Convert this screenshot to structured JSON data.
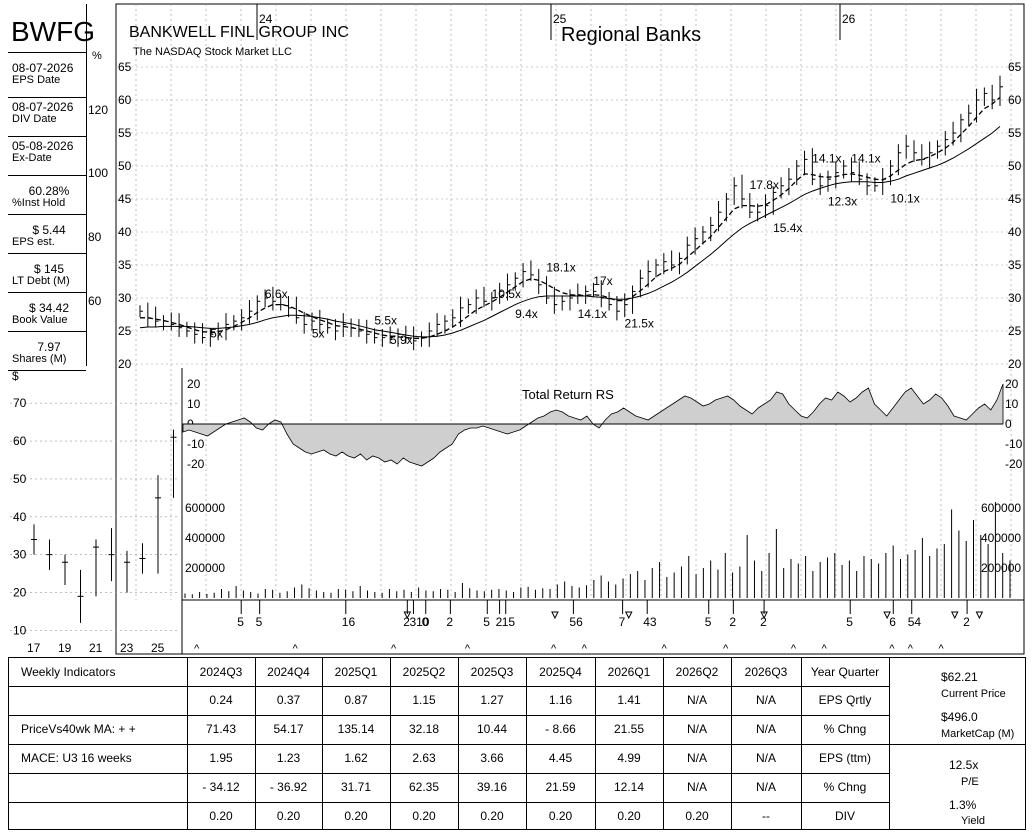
{
  "header": {
    "ticker": "BWFG",
    "company": "BANKWELL FINL GROUP INC",
    "exchange": "The NASDAQ Stock Market LLC",
    "industry": "Regional Banks"
  },
  "side_panel": [
    {
      "value": "08-07-2026",
      "label": "EPS Date"
    },
    {
      "value": "08-07-2026",
      "label": "DIV Date"
    },
    {
      "value": "05-08-2026",
      "label": "Ex-Date"
    },
    {
      "value": "60.28%",
      "label": "%Inst Hold"
    },
    {
      "value": "$ 5.44",
      "label": "EPS est."
    },
    {
      "value": "$ 145",
      "label": "LT Debt (M)"
    },
    {
      "value": "$ 34.42",
      "label": "Book Value"
    },
    {
      "value": "7.97",
      "label": "Shares (M)"
    }
  ],
  "pct_axis": {
    "symbol": "%",
    "ticks": [
      "120",
      "100",
      "80",
      "60"
    ]
  },
  "chart_data": [
    {
      "type": "line",
      "name": "weekly-price",
      "x_year_labels": [
        "24",
        "25",
        "26"
      ],
      "y_ticks": [
        20,
        25,
        30,
        35,
        40,
        45,
        50,
        55,
        60,
        65
      ],
      "ylim": [
        20,
        66
      ],
      "price_close": [
        28,
        27,
        26.5,
        26.5,
        26,
        25.5,
        25,
        24.5,
        24,
        24.5,
        25,
        26,
        26.5,
        27,
        28,
        29.5,
        30,
        29.5,
        29,
        28.5,
        27,
        26,
        26.5,
        26,
        25.5,
        25,
        26,
        25.5,
        25,
        24.5,
        24,
        24,
        24,
        24.5,
        24,
        23.5,
        24,
        25,
        26,
        26.5,
        27,
        28.5,
        29,
        30,
        29.5,
        30,
        31,
        32,
        33,
        34,
        33.5,
        32,
        30,
        29,
        29.5,
        30,
        30.5,
        31,
        31,
        30,
        29,
        28,
        29,
        31,
        33,
        34,
        35,
        35.5,
        35,
        36,
        38,
        39,
        40,
        41,
        43,
        45,
        47,
        45,
        43,
        43,
        44,
        46,
        47,
        48,
        50,
        51,
        48,
        47,
        48,
        49,
        50,
        49,
        48,
        47,
        47,
        48,
        50,
        52,
        53,
        52,
        51,
        52,
        53,
        54,
        55,
        57,
        58,
        60,
        61,
        60,
        62
      ],
      "sma10": [
        27,
        27,
        26.8,
        26.6,
        26.3,
        26,
        25.6,
        25.2,
        24.9,
        24.8,
        24.9,
        25.2,
        25.7,
        26.3,
        27,
        27.8,
        28.5,
        29,
        29,
        28.8,
        28.3,
        27.7,
        27.2,
        26.7,
        26.3,
        25.8,
        25.7,
        25.5,
        25.3,
        25,
        24.7,
        24.4,
        24.2,
        24.1,
        24,
        23.9,
        23.9,
        24.1,
        24.5,
        25,
        25.6,
        26.4,
        27.3,
        28.2,
        28.8,
        29.4,
        30.1,
        30.9,
        31.7,
        32.5,
        32.9,
        32.7,
        32.1,
        31.4,
        30.8,
        30.5,
        30.4,
        30.4,
        30.5,
        30.4,
        30,
        29.6,
        29.6,
        30.2,
        31.1,
        32.1,
        33.2,
        34,
        34.5,
        35.1,
        36.2,
        37.2,
        38.3,
        39.3,
        40.7,
        42.1,
        43.5,
        44,
        44,
        43.9,
        44.1,
        44.8,
        45.6,
        46.6,
        47.8,
        48.8,
        48.7,
        48.4,
        48.3,
        48.4,
        48.7,
        48.8,
        48.6,
        48.3,
        48,
        47.9,
        48.5,
        49.4,
        50.3,
        50.8,
        51,
        51.4,
        52,
        52.7,
        53.6,
        54.8,
        56,
        57.4,
        58.7,
        59.4,
        60.4
      ],
      "sma40": [
        25.5,
        25.6,
        25.6,
        25.7,
        25.7,
        25.7,
        25.7,
        25.6,
        25.5,
        25.4,
        25.4,
        25.5,
        25.6,
        25.8,
        26,
        26.3,
        26.7,
        27,
        27.2,
        27.4,
        27.4,
        27.3,
        27.2,
        27,
        26.8,
        26.5,
        26.3,
        26.1,
        25.8,
        25.5,
        25.2,
        25,
        24.8,
        24.6,
        24.4,
        24.2,
        24.1,
        24.1,
        24.2,
        24.4,
        24.7,
        25.1,
        25.6,
        26.1,
        26.6,
        27.2,
        27.8,
        28.4,
        29,
        29.5,
        29.9,
        30.2,
        30.3,
        30.3,
        30.3,
        30.3,
        30.3,
        30.3,
        30.2,
        30.1,
        29.9,
        29.8,
        29.8,
        30,
        30.3,
        30.7,
        31.2,
        31.8,
        32.4,
        33.1,
        33.9,
        34.8,
        35.7,
        36.6,
        37.6,
        38.7,
        39.7,
        40.6,
        41.3,
        41.9,
        42.5,
        43.1,
        43.7,
        44.3,
        45,
        45.7,
        46.2,
        46.6,
        47,
        47.3,
        47.5,
        47.6,
        47.6,
        47.6,
        47.5,
        47.5,
        47.7,
        48,
        48.5,
        48.9,
        49.3,
        49.7,
        50.1,
        50.6,
        51.2,
        51.9,
        52.6,
        53.4,
        54.2,
        55,
        56
      ],
      "pe_labels": [
        {
          "text": "5x",
          "i": 10,
          "y": 24
        },
        {
          "text": "6.6x",
          "i": 17,
          "y": 30
        },
        {
          "text": "5x",
          "i": 23,
          "y": 24
        },
        {
          "text": "5.5x",
          "i": 31,
          "y": 26
        },
        {
          "text": "5.9x",
          "i": 33,
          "y": 23
        },
        {
          "text": "10.5x",
          "i": 46,
          "y": 30
        },
        {
          "text": "9.4x",
          "i": 49,
          "y": 27
        },
        {
          "text": "18.1x",
          "i": 53,
          "y": 34
        },
        {
          "text": "14.1x",
          "i": 57,
          "y": 27
        },
        {
          "text": "17x",
          "i": 59,
          "y": 32
        },
        {
          "text": "21.5x",
          "i": 63,
          "y": 25.5
        },
        {
          "text": "17.8x",
          "i": 79,
          "y": 46.5
        },
        {
          "text": "15.4x",
          "i": 82,
          "y": 40
        },
        {
          "text": "14.1x",
          "i": 87,
          "y": 50.5
        },
        {
          "text": "12.3x",
          "i": 89,
          "y": 44
        },
        {
          "text": "14.1x",
          "i": 92,
          "y": 50.5
        },
        {
          "text": "10.1x",
          "i": 97,
          "y": 44.5
        }
      ]
    },
    {
      "type": "area",
      "name": "total-return-rs",
      "title": "Total Return RS",
      "y_ticks": [
        20,
        10,
        0,
        -10,
        -20
      ],
      "ylim": [
        -22,
        22
      ],
      "values": [
        -4,
        -3,
        -4,
        -5,
        -6,
        -4,
        -2,
        0,
        1,
        2,
        3,
        1,
        -2,
        -3,
        0,
        2,
        1,
        -5,
        -10,
        -12,
        -14,
        -15,
        -14,
        -13,
        -15,
        -16,
        -14,
        -16,
        -17,
        -15,
        -18,
        -16,
        -17,
        -19,
        -18,
        -20,
        -17,
        -19,
        -20,
        -21,
        -19,
        -17,
        -14,
        -12,
        -10,
        -5,
        -3,
        -2,
        -2,
        -1,
        -2,
        -3,
        -4,
        -5,
        -4,
        -3,
        -1,
        1,
        3,
        4,
        6,
        7,
        6,
        4,
        3,
        2,
        4,
        0,
        -2,
        2,
        5,
        6,
        8,
        6,
        4,
        3,
        2,
        4,
        6,
        8,
        10,
        12,
        14,
        13,
        11,
        9,
        10,
        12,
        13,
        14,
        12,
        9,
        7,
        5,
        8,
        10,
        12,
        16,
        15,
        10,
        7,
        4,
        3,
        6,
        10,
        13,
        12,
        16,
        14,
        11,
        13,
        16,
        18,
        10,
        7,
        4,
        8,
        12,
        16,
        18,
        14,
        10,
        12,
        15,
        13,
        9,
        4,
        3,
        2,
        5,
        8,
        10,
        7,
        12,
        20
      ]
    },
    {
      "type": "bar",
      "name": "volume",
      "y_ticks": [
        600000,
        400000,
        200000
      ],
      "ylim": [
        0,
        680000
      ],
      "values": [
        30000,
        25000,
        40000,
        28000,
        35000,
        60000,
        45000,
        80000,
        50000,
        40000,
        30000,
        60000,
        55000,
        35000,
        45000,
        70000,
        90000,
        65000,
        50000,
        40000,
        35000,
        60000,
        55000,
        45000,
        80000,
        50000,
        40000,
        35000,
        60000,
        45000,
        55000,
        40000,
        70000,
        50000,
        45000,
        60000,
        55000,
        40000,
        100000,
        65000,
        50000,
        45000,
        55000,
        60000,
        50000,
        40000,
        70000,
        75000,
        55000,
        65000,
        60000,
        90000,
        110000,
        80000,
        70000,
        85000,
        120000,
        150000,
        110000,
        90000,
        130000,
        160000,
        180000,
        120000,
        200000,
        240000,
        140000,
        170000,
        210000,
        280000,
        160000,
        200000,
        250000,
        190000,
        300000,
        170000,
        210000,
        420000,
        250000,
        180000,
        300000,
        460000,
        200000,
        260000,
        230000,
        280000,
        180000,
        240000,
        270000,
        300000,
        220000,
        250000,
        180000,
        280000,
        260000,
        230000,
        300000,
        350000,
        260000,
        290000,
        320000,
        400000,
        280000,
        330000,
        360000,
        590000,
        450000,
        380000,
        520000,
        420000,
        360000,
        640000,
        300000,
        250000
      ]
    },
    {
      "type": "bar",
      "name": "annual-price-range",
      "y_axis_symbol": "$",
      "categories": [
        "17",
        "18",
        "19",
        "20",
        "21",
        "22",
        "23",
        "24",
        "25",
        "26"
      ],
      "x_ticks": [
        "17",
        "19",
        "21",
        "23",
        "25"
      ],
      "y_ticks": [
        10,
        20,
        30,
        40,
        50,
        60,
        70
      ],
      "ylim": [
        8,
        74
      ],
      "high": [
        38,
        34,
        30,
        26,
        34,
        37,
        31,
        33,
        51,
        63
      ],
      "low": [
        30,
        26,
        22,
        12,
        19,
        23,
        20,
        25,
        25,
        45
      ],
      "close": [
        34,
        30,
        28,
        19,
        32,
        30,
        28,
        29,
        45,
        61
      ]
    }
  ],
  "insider_row": {
    "labels": [
      {
        "text": "5",
        "i": 8
      },
      {
        "text": "5",
        "i": 11
      },
      {
        "text": "16",
        "i": 25
      },
      {
        "text": "2",
        "i": 35
      },
      {
        "text": "310",
        "i": 36
      },
      {
        "text": "0",
        "i": 38
      },
      {
        "text": "2",
        "i": 42
      },
      {
        "text": "5",
        "i": 48
      },
      {
        "text": "2",
        "i": 50
      },
      {
        "text": "15",
        "i": 51
      },
      {
        "text": "56",
        "i": 62
      },
      {
        "text": "7",
        "i": 70
      },
      {
        "text": "43",
        "i": 74
      },
      {
        "text": "5",
        "i": 84
      },
      {
        "text": "2",
        "i": 88
      },
      {
        "text": "2",
        "i": 93
      },
      {
        "text": "5",
        "i": 107
      },
      {
        "text": "6",
        "i": 114
      },
      {
        "text": "54",
        "i": 117
      },
      {
        "text": "2",
        "i": 126
      }
    ],
    "arrows": [
      35,
      59,
      71,
      93,
      113,
      124,
      128
    ],
    "ups": [
      1,
      17,
      33,
      45,
      59,
      64,
      77,
      87,
      98,
      103,
      114,
      117,
      122
    ]
  },
  "table": {
    "label_rows": [
      "Weekly Indicators",
      "",
      "PriceVs40wk MA:  + +",
      "",
      "MACE: U3  16 weeks",
      "",
      ""
    ],
    "headers": [
      "2024Q3",
      "2024Q4",
      "2025Q1",
      "2025Q2",
      "2025Q3",
      "2025Q4",
      "2026Q1",
      "2026Q2",
      "2026Q3",
      "Year Quarter"
    ],
    "rows": [
      [
        "0.24",
        "0.37",
        "0.87",
        "1.15",
        "1.27",
        "1.16",
        "1.41",
        "N/A",
        "N/A",
        "EPS Qrtly"
      ],
      [
        "71.43",
        "54.17",
        "135.14",
        "32.18",
        "10.44",
        "- 8.66",
        "21.55",
        "N/A",
        "N/A",
        "% Chng"
      ],
      [
        "1.95",
        "1.23",
        "1.62",
        "2.63",
        "3.66",
        "4.45",
        "4.99",
        "N/A",
        "N/A",
        "EPS (ttm)"
      ],
      [
        "- 34.12",
        "- 36.92",
        "31.71",
        "62.35",
        "39.16",
        "21.59",
        "12.14",
        "N/A",
        "N/A",
        "% Chng"
      ],
      [
        "0.20",
        "0.20",
        "0.20",
        "0.20",
        "0.20",
        "0.20",
        "0.20",
        "0.20",
        "--",
        "DIV"
      ]
    ],
    "summary": [
      {
        "value": "$62.21",
        "label": "Current Price"
      },
      {
        "value": "$496.0",
        "label": "MarketCap (M)"
      },
      {
        "value": "12.5x",
        "label": "P/E"
      },
      {
        "value": "1.3%",
        "label": "Yield"
      }
    ]
  }
}
